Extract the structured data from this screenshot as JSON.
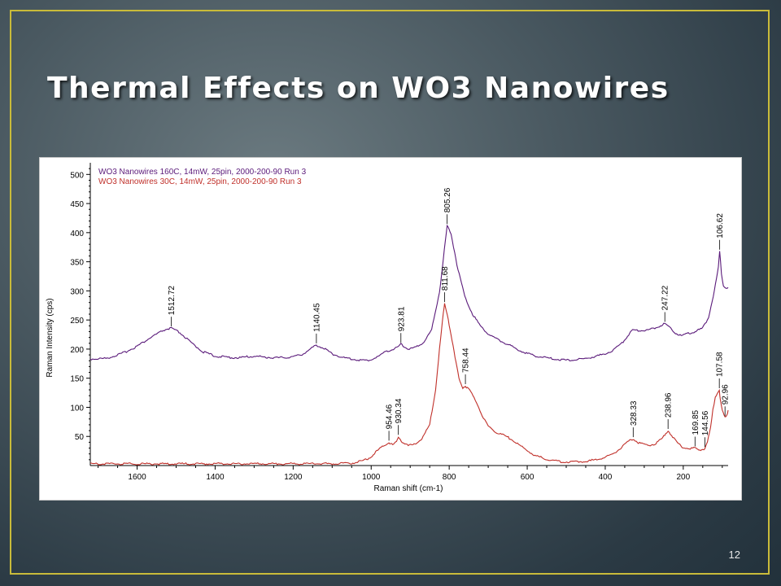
{
  "slide": {
    "title": "Thermal Effects on WO3 Nanowires",
    "page_number": "12",
    "frame_color": "#c9bb3a"
  },
  "chart_data": {
    "type": "line",
    "xlabel": "Raman shift (cm-1)",
    "ylabel": "Raman Intensity (cps)",
    "xlim": [
      1720,
      85
    ],
    "ylim": [
      0,
      520
    ],
    "x_reversed": true,
    "x_ticks": [
      1600,
      1400,
      1200,
      1000,
      800,
      600,
      400,
      200
    ],
    "y_ticks": [
      50,
      100,
      150,
      200,
      250,
      300,
      350,
      400,
      450,
      500
    ],
    "grid": false,
    "legend_position": "top-left",
    "series": [
      {
        "name": "WO3 Nanowires 160C, 14mW, 25pin, 2000-200-90 Run 3",
        "color": "#5a1a7a",
        "points": [
          [
            1720,
            183
          ],
          [
            1680,
            184
          ],
          [
            1640,
            192
          ],
          [
            1600,
            205
          ],
          [
            1560,
            222
          ],
          [
            1530,
            233
          ],
          [
            1512.72,
            236
          ],
          [
            1490,
            228
          ],
          [
            1460,
            210
          ],
          [
            1430,
            195
          ],
          [
            1400,
            188
          ],
          [
            1370,
            186
          ],
          [
            1340,
            185
          ],
          [
            1300,
            188
          ],
          [
            1270,
            186
          ],
          [
            1240,
            185
          ],
          [
            1210,
            186
          ],
          [
            1180,
            190
          ],
          [
            1160,
            198
          ],
          [
            1140.45,
            207
          ],
          [
            1120,
            201
          ],
          [
            1100,
            192
          ],
          [
            1070,
            185
          ],
          [
            1040,
            182
          ],
          [
            1010,
            180
          ],
          [
            985,
            186
          ],
          [
            960,
            197
          ],
          [
            940,
            200
          ],
          [
            923.81,
            208
          ],
          [
            905,
            200
          ],
          [
            885,
            203
          ],
          [
            865,
            212
          ],
          [
            845,
            233
          ],
          [
            825,
            298
          ],
          [
            815,
            355
          ],
          [
            805.26,
            412
          ],
          [
            795,
            398
          ],
          [
            780,
            345
          ],
          [
            760,
            290
          ],
          [
            740,
            260
          ],
          [
            720,
            240
          ],
          [
            700,
            226
          ],
          [
            680,
            218
          ],
          [
            650,
            208
          ],
          [
            620,
            198
          ],
          [
            590,
            190
          ],
          [
            560,
            186
          ],
          [
            530,
            183
          ],
          [
            500,
            181
          ],
          [
            470,
            182
          ],
          [
            440,
            185
          ],
          [
            410,
            190
          ],
          [
            385,
            196
          ],
          [
            360,
            208
          ],
          [
            340,
            225
          ],
          [
            330,
            233
          ],
          [
            310,
            232
          ],
          [
            290,
            233
          ],
          [
            270,
            237
          ],
          [
            247.22,
            244
          ],
          [
            235,
            237
          ],
          [
            220,
            228
          ],
          [
            205,
            223
          ],
          [
            190,
            226
          ],
          [
            170,
            230
          ],
          [
            150,
            236
          ],
          [
            135,
            255
          ],
          [
            120,
            300
          ],
          [
            110,
            340
          ],
          [
            106.62,
            368
          ],
          [
            102,
            330
          ],
          [
            97,
            310
          ],
          [
            92,
            305
          ],
          [
            85,
            306
          ]
        ]
      },
      {
        "name": "WO3 Nanowires 30C, 14mW, 25pin, 2000-200-90 Run 3",
        "color": "#c0302a",
        "points": [
          [
            1720,
            3
          ],
          [
            1600,
            3
          ],
          [
            1400,
            3
          ],
          [
            1200,
            3
          ],
          [
            1100,
            3
          ],
          [
            1050,
            4
          ],
          [
            1020,
            8
          ],
          [
            1000,
            15
          ],
          [
            980,
            28
          ],
          [
            960,
            38
          ],
          [
            954.46,
            40
          ],
          [
            945,
            35
          ],
          [
            935,
            40
          ],
          [
            930.34,
            50
          ],
          [
            920,
            40
          ],
          [
            905,
            34
          ],
          [
            890,
            36
          ],
          [
            870,
            46
          ],
          [
            850,
            70
          ],
          [
            835,
            130
          ],
          [
            825,
            200
          ],
          [
            815,
            262
          ],
          [
            811.68,
            278
          ],
          [
            805,
            260
          ],
          [
            795,
            225
          ],
          [
            785,
            185
          ],
          [
            775,
            150
          ],
          [
            765,
            134
          ],
          [
            758.44,
            137
          ],
          [
            745,
            127
          ],
          [
            730,
            108
          ],
          [
            715,
            86
          ],
          [
            700,
            68
          ],
          [
            680,
            57
          ],
          [
            660,
            52
          ],
          [
            640,
            45
          ],
          [
            610,
            30
          ],
          [
            580,
            17
          ],
          [
            550,
            11
          ],
          [
            520,
            7
          ],
          [
            480,
            6
          ],
          [
            440,
            8
          ],
          [
            400,
            14
          ],
          [
            375,
            22
          ],
          [
            355,
            33
          ],
          [
            340,
            42
          ],
          [
            328.33,
            46
          ],
          [
            315,
            39
          ],
          [
            300,
            36
          ],
          [
            285,
            35
          ],
          [
            270,
            38
          ],
          [
            255,
            46
          ],
          [
            245,
            55
          ],
          [
            238.96,
            60
          ],
          [
            230,
            52
          ],
          [
            215,
            38
          ],
          [
            200,
            31
          ],
          [
            185,
            29
          ],
          [
            169.85,
            30
          ],
          [
            160,
            27
          ],
          [
            150,
            28
          ],
          [
            144.56,
            29
          ],
          [
            138,
            40
          ],
          [
            130,
            65
          ],
          [
            124,
            95
          ],
          [
            118,
            118
          ],
          [
            107.58,
            130
          ],
          [
            105,
            112
          ],
          [
            100,
            95
          ],
          [
            92.96,
            82
          ],
          [
            88,
            86
          ],
          [
            85,
            95
          ]
        ]
      }
    ],
    "peak_labels": [
      {
        "series": 0,
        "x": 1512.72,
        "y": 236,
        "label": "1512.72"
      },
      {
        "series": 0,
        "x": 1140.45,
        "y": 207,
        "label": "1140.45"
      },
      {
        "series": 0,
        "x": 923.81,
        "y": 208,
        "label": "923.81"
      },
      {
        "series": 0,
        "x": 805.26,
        "y": 412,
        "label": "805.26"
      },
      {
        "series": 0,
        "x": 247.22,
        "y": 244,
        "label": "247.22"
      },
      {
        "series": 0,
        "x": 106.62,
        "y": 368,
        "label": "106.62"
      },
      {
        "series": 1,
        "x": 954.46,
        "y": 40,
        "label": "954.46"
      },
      {
        "series": 1,
        "x": 930.34,
        "y": 50,
        "label": "930.34"
      },
      {
        "series": 1,
        "x": 811.68,
        "y": 278,
        "label": "811.68"
      },
      {
        "series": 1,
        "x": 758.44,
        "y": 137,
        "label": "758.44"
      },
      {
        "series": 1,
        "x": 328.33,
        "y": 46,
        "label": "328.33"
      },
      {
        "series": 1,
        "x": 238.96,
        "y": 60,
        "label": "238.96"
      },
      {
        "series": 1,
        "x": 169.85,
        "y": 30,
        "label": "169.85"
      },
      {
        "series": 1,
        "x": 144.56,
        "y": 29,
        "label": "144.56"
      },
      {
        "series": 1,
        "x": 107.58,
        "y": 130,
        "label": "107.58"
      },
      {
        "series": 1,
        "x": 92.96,
        "y": 82,
        "label": "92.96"
      }
    ]
  }
}
